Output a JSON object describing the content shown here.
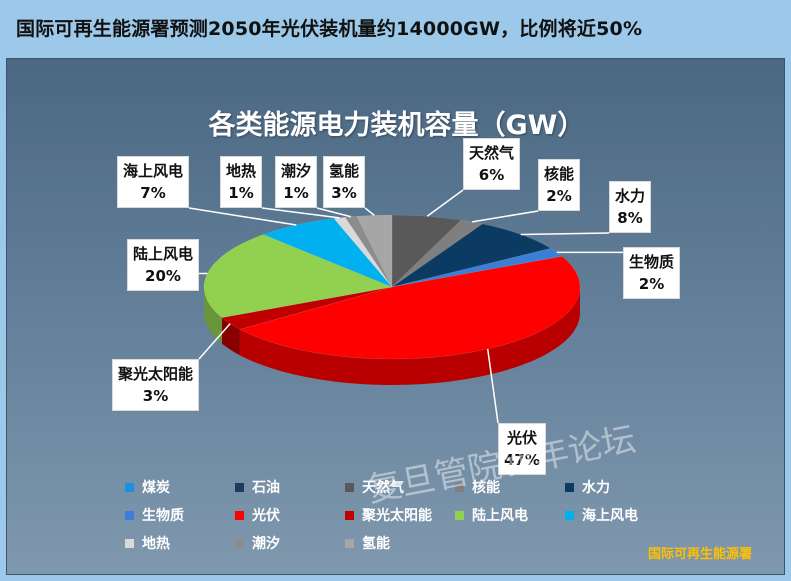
{
  "headline": "国际可再生能源署预测2050年光伏装机量约14000GW，比例将近50%",
  "source": "国际可再生能源署",
  "watermark": "复旦管院新年论坛",
  "chart_data": {
    "type": "pie",
    "title": "各类能源电力装机容量（GW）",
    "slices": [
      {
        "label": "煤炭",
        "value": 0,
        "color": "#1e90e0"
      },
      {
        "label": "石油",
        "value": 0,
        "color": "#1f3a5a"
      },
      {
        "label": "天然气",
        "value": 6,
        "display": "6%",
        "color": "#595959"
      },
      {
        "label": "核能",
        "value": 2,
        "display": "2%",
        "color": "#7f7f7f"
      },
      {
        "label": "水力",
        "value": 8,
        "display": "8%",
        "color": "#0b3b63"
      },
      {
        "label": "生物质",
        "value": 2,
        "display": "2%",
        "color": "#3a7fd5"
      },
      {
        "label": "光伏",
        "value": 47,
        "display": "47%",
        "color": "#ff0000"
      },
      {
        "label": "聚光太阳能",
        "value": 3,
        "display": "3%",
        "color": "#c00000"
      },
      {
        "label": "陆上风电",
        "value": 20,
        "display": "20%",
        "color": "#92d050"
      },
      {
        "label": "海上风电",
        "value": 7,
        "display": "7%",
        "color": "#00b0f0"
      },
      {
        "label": "地热",
        "value": 1,
        "display": "1%",
        "color": "#d9d9d9"
      },
      {
        "label": "潮汐",
        "value": 1,
        "display": "1%",
        "color": "#8c8c8c"
      },
      {
        "label": "氢能",
        "value": 3,
        "display": "3%",
        "color": "#a6a6a6"
      }
    ],
    "legend_position": "bottom"
  }
}
